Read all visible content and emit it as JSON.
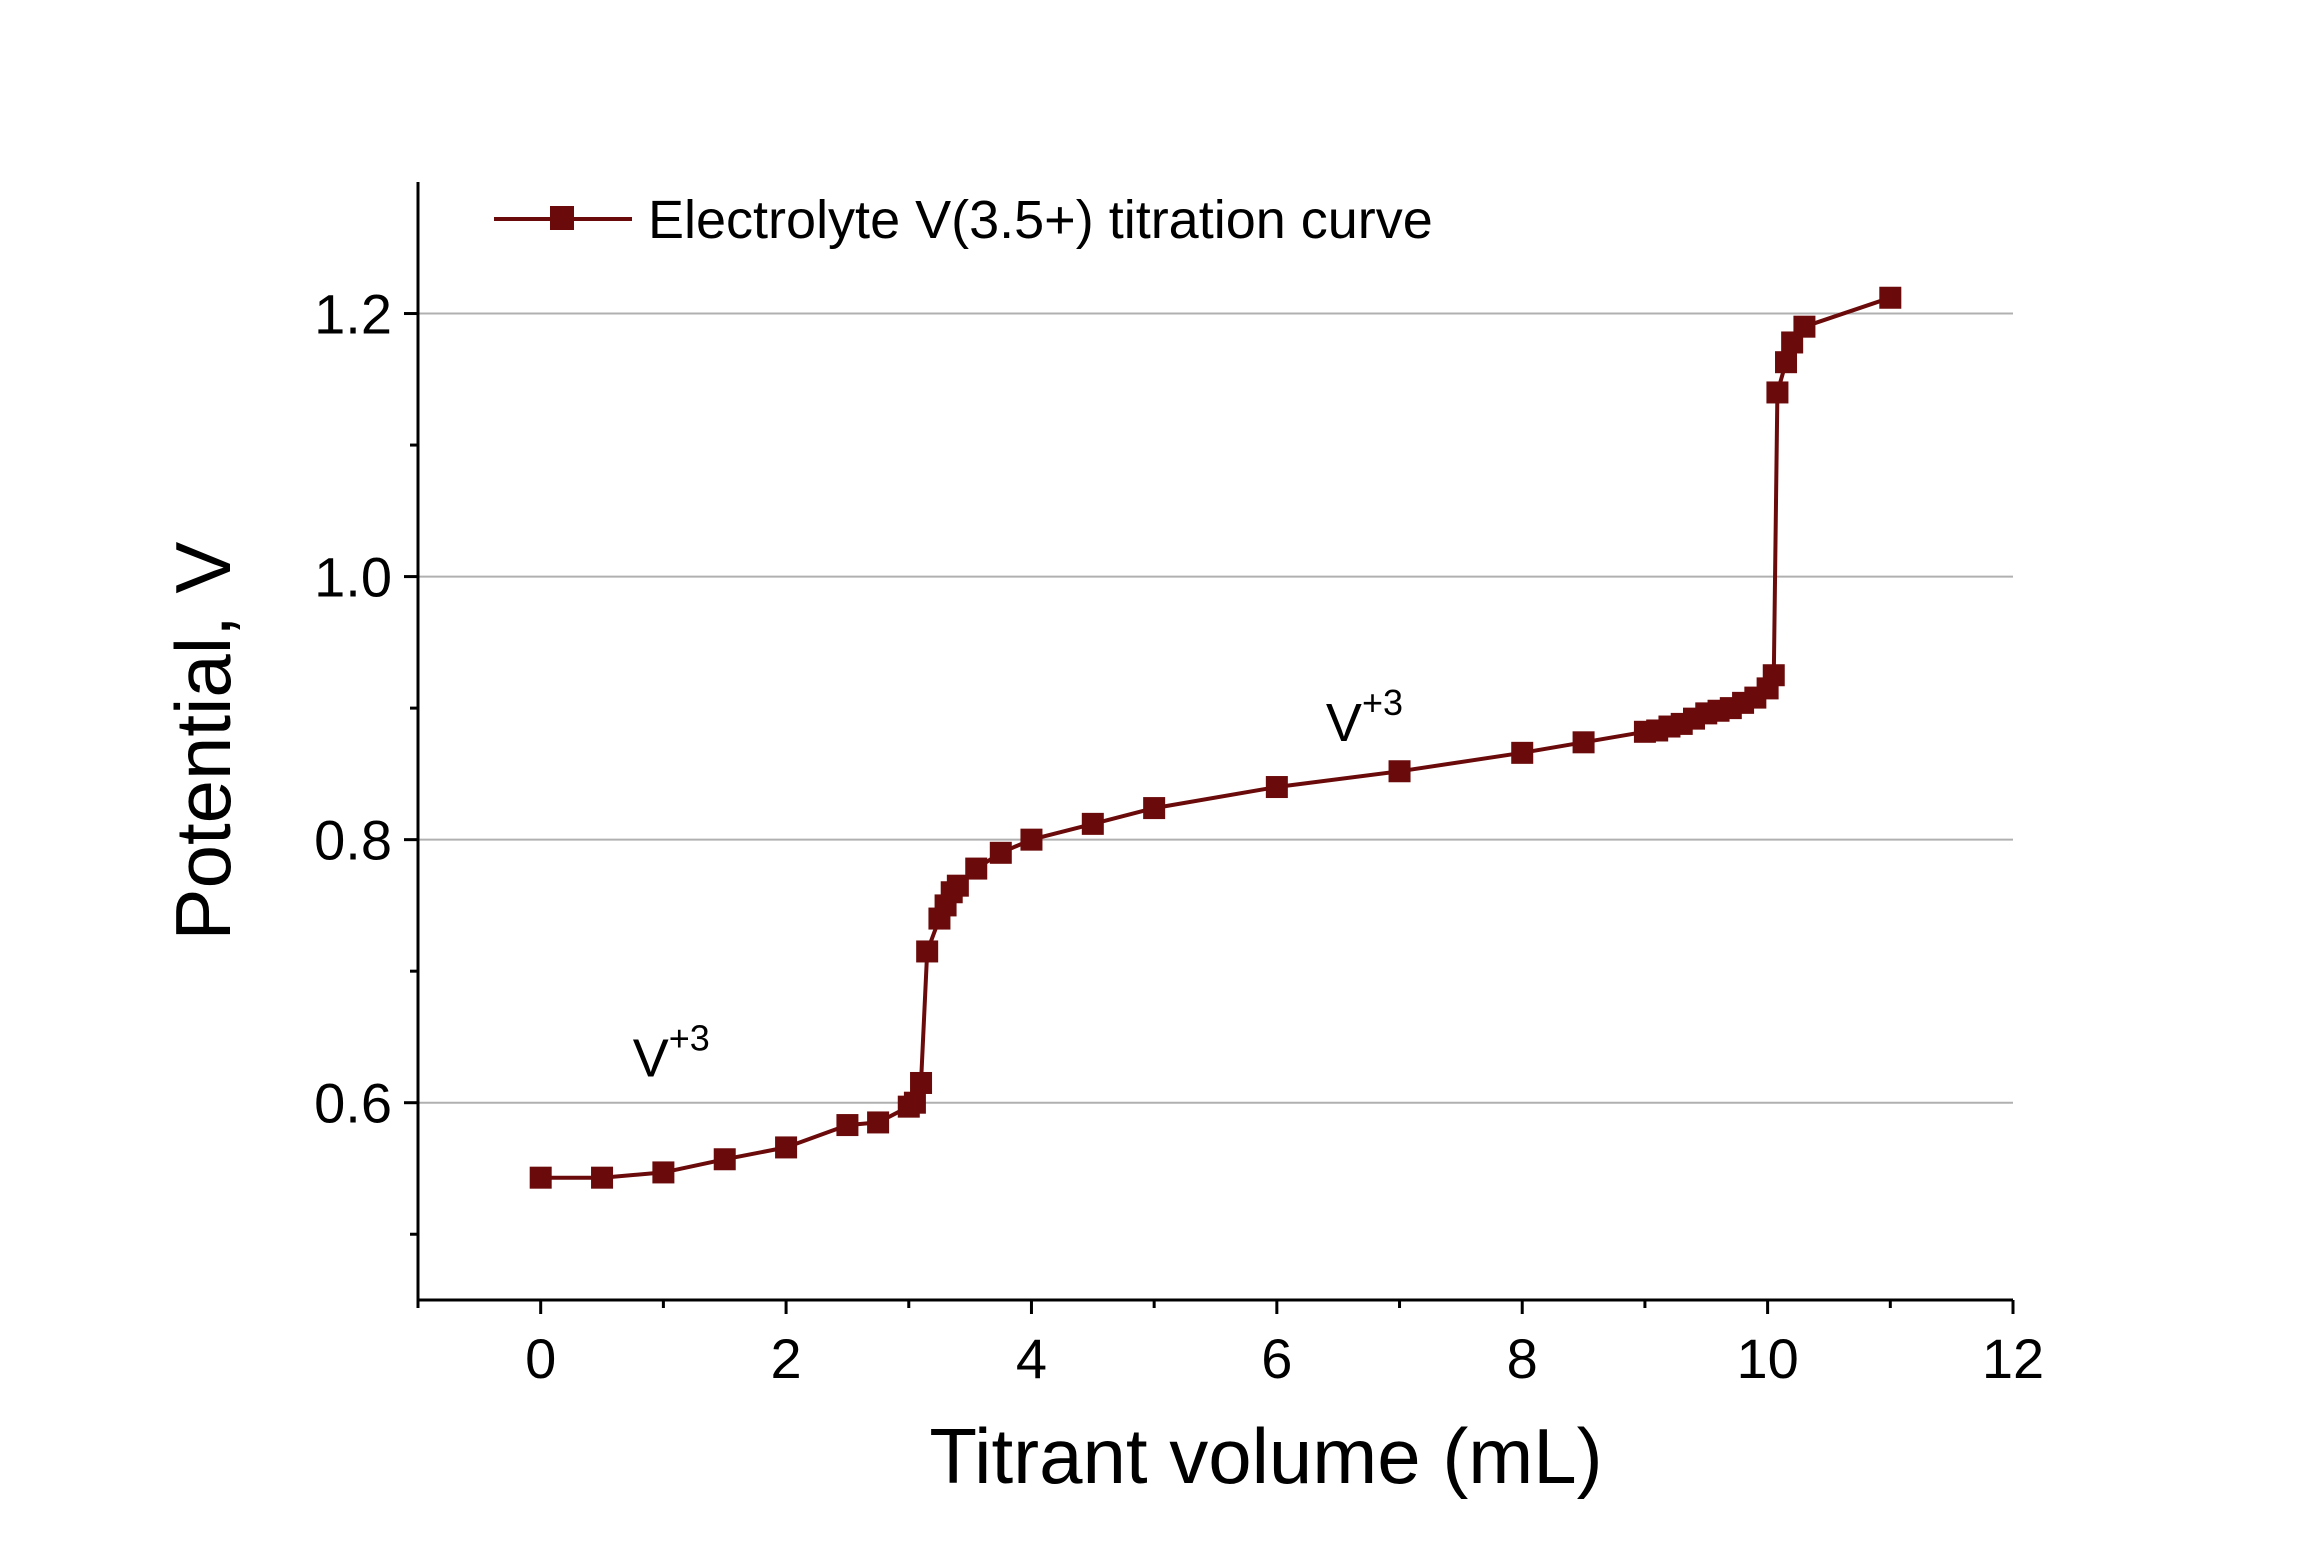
{
  "chart_data": {
    "type": "line",
    "xlabel": "Titrant volume (mL)",
    "ylabel": "Potential, V",
    "xlim": [
      -1,
      12
    ],
    "ylim": [
      0.45,
      1.3
    ],
    "x_ticks": [
      0,
      2,
      4,
      6,
      8,
      10,
      12
    ],
    "x_tick_labels": [
      "0",
      "2",
      "4",
      "6",
      "8",
      "10",
      "12"
    ],
    "y_ticks": [
      0.6,
      0.8,
      1.0,
      1.2
    ],
    "y_tick_labels": [
      "0.6",
      "0.8",
      "1.0",
      "1.2"
    ],
    "grid": "horizontal",
    "legend": "top-left",
    "series": [
      {
        "name": "Electrolyte V(3.5+) titration curve",
        "color": "#6b0a0a",
        "marker": "square",
        "x": [
          0,
          0.5,
          1.0,
          1.5,
          2.0,
          2.5,
          2.75,
          3.0,
          3.05,
          3.1,
          3.15,
          3.25,
          3.3,
          3.35,
          3.4,
          3.55,
          3.75,
          4.0,
          4.5,
          5.0,
          6.0,
          7.0,
          8.0,
          8.5,
          9.0,
          9.1,
          9.2,
          9.3,
          9.4,
          9.5,
          9.6,
          9.7,
          9.8,
          9.9,
          10.0,
          10.05,
          10.08,
          10.15,
          10.2,
          10.3,
          11.0
        ],
        "y": [
          0.543,
          0.543,
          0.547,
          0.557,
          0.566,
          0.583,
          0.585,
          0.597,
          0.6,
          0.615,
          0.715,
          0.74,
          0.75,
          0.76,
          0.765,
          0.778,
          0.79,
          0.8,
          0.812,
          0.824,
          0.84,
          0.852,
          0.866,
          0.874,
          0.882,
          0.883,
          0.886,
          0.888,
          0.892,
          0.896,
          0.898,
          0.9,
          0.904,
          0.908,
          0.915,
          0.925,
          1.14,
          1.163,
          1.178,
          1.19,
          1.212
        ]
      }
    ],
    "annotations": [
      {
        "text": "V",
        "superscript": "+3",
        "x": 0.75,
        "y": 0.62
      },
      {
        "text": "V",
        "superscript": "+3",
        "x": 6.4,
        "y": 0.875
      }
    ]
  }
}
